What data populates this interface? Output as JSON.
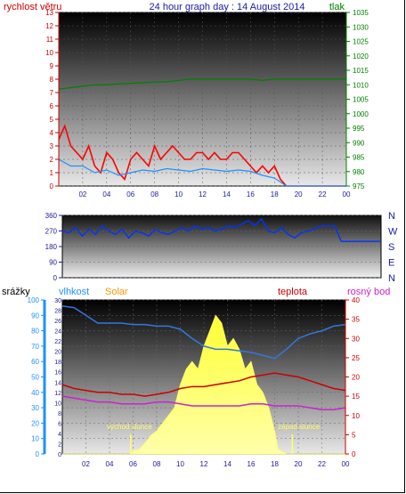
{
  "header": {
    "left_label": "rychlost větru",
    "title": "24 hour graph day : 14 August 2014",
    "right_label": "tlak"
  },
  "wind_panel": {
    "left_ticks": [
      0,
      1,
      2,
      3,
      4,
      5,
      6,
      7,
      8,
      9,
      10,
      11,
      12,
      13
    ],
    "right_ticks": [
      975,
      980,
      985,
      990,
      995,
      1000,
      1005,
      1010,
      1015,
      1020,
      1025,
      1030,
      1035
    ],
    "x_ticks": [
      "02",
      "04",
      "06",
      "08",
      "10",
      "12",
      "14",
      "16",
      "18",
      "20",
      "22",
      "00"
    ]
  },
  "direction_panel": {
    "left_ticks": [
      0,
      90,
      180,
      270,
      360
    ],
    "compass": [
      "N",
      "W",
      "S",
      "E",
      "N"
    ],
    "x_ticks": []
  },
  "weather_panel": {
    "labels": {
      "rain": "srážky",
      "humidity": "vlhkost",
      "solar": "Solar",
      "temperature": "teplota",
      "dewpoint": "rosný bod"
    },
    "left_ticks": [
      0,
      10,
      20,
      30,
      40,
      50,
      60,
      70,
      80,
      90,
      100
    ],
    "left2_ticks": [
      0,
      2,
      4,
      6,
      8,
      10,
      12,
      14,
      16,
      18,
      20,
      22,
      24,
      26,
      28,
      30
    ],
    "right_ticks": [
      0,
      5,
      10,
      15,
      20,
      25,
      30,
      35,
      40
    ],
    "x_ticks": [
      "02",
      "04",
      "06",
      "08",
      "10",
      "12",
      "14",
      "16",
      "18",
      "20",
      "22",
      "00"
    ],
    "annotations": {
      "sunrise": "východ slunce",
      "sunset": "západ slunce"
    }
  },
  "colors": {
    "wind_gust": "#ff0000",
    "wind_avg": "#1e90ff",
    "pressure": "#008000",
    "direction": "#0033ff",
    "humidity": "#3377dd",
    "temperature": "#cc0000",
    "dewpoint": "#cc22cc",
    "solar": "#ffff33",
    "rain_axis": "#1e90ff"
  },
  "chart_data": [
    {
      "type": "line",
      "x_unit": "hour",
      "series": [
        {
          "name": "rychlost větru",
          "axis": "left",
          "x": [
            0,
            0.5,
            1,
            1.5,
            2,
            2.5,
            3,
            3.5,
            4,
            4.5,
            5,
            5.5,
            6,
            6.5,
            7,
            7.5,
            8,
            8.5,
            9,
            9.5,
            10,
            10.5,
            11,
            11.5,
            12,
            12.5,
            13,
            13.5,
            14,
            14.5,
            15,
            15.5,
            16,
            16.5,
            17,
            17.5,
            18,
            18.5,
            19,
            20,
            21,
            22,
            23,
            24
          ],
          "values": [
            3.5,
            4.5,
            3,
            2.5,
            2,
            3,
            1.5,
            1,
            2.5,
            2,
            1,
            0.5,
            2,
            2.5,
            2,
            1.5,
            3,
            2,
            2.5,
            3,
            2.5,
            2,
            2,
            2.5,
            2.5,
            2,
            2.5,
            2,
            2,
            2.5,
            2.5,
            2,
            1.5,
            1,
            1.5,
            1,
            1.5,
            0.5,
            0,
            0,
            0,
            0,
            0,
            0
          ]
        },
        {
          "name": "avg",
          "axis": "left",
          "x": [
            0,
            1,
            2,
            3,
            4,
            5,
            6,
            7,
            8,
            9,
            10,
            11,
            12,
            13,
            14,
            15,
            16,
            17,
            18,
            19,
            20,
            22,
            24
          ],
          "values": [
            2,
            1.5,
            1.5,
            1,
            1.2,
            0.8,
            1,
            1.2,
            1.1,
            1.3,
            1.2,
            1.1,
            1.3,
            1.2,
            1.1,
            1.2,
            1.1,
            0.8,
            0.6,
            0,
            0,
            0,
            0
          ]
        },
        {
          "name": "tlak",
          "axis": "right",
          "x": [
            0,
            1,
            2,
            3,
            4,
            5,
            6,
            7,
            8,
            9,
            10,
            11,
            12,
            13,
            14,
            15,
            16,
            17,
            18,
            19,
            20,
            21,
            22,
            23,
            24
          ],
          "values": [
            1008.5,
            1009,
            1009.5,
            1010,
            1010,
            1010.3,
            1010.5,
            1010.7,
            1011,
            1011,
            1011.5,
            1012,
            1012,
            1012,
            1012,
            1012,
            1012,
            1011.5,
            1012,
            1012,
            1012,
            1012,
            1012,
            1012,
            1012
          ]
        }
      ],
      "xlim": [
        0,
        24
      ],
      "ylim_left": [
        0,
        13
      ],
      "ylim_right": [
        975,
        1035
      ]
    },
    {
      "type": "line",
      "x_unit": "hour",
      "series": [
        {
          "name": "direction",
          "x": [
            0,
            0.5,
            1,
            1.5,
            2,
            2.5,
            3,
            3.5,
            4,
            4.5,
            5,
            5.5,
            6,
            6.5,
            7,
            7.5,
            8,
            8.5,
            9,
            9.5,
            10,
            10.5,
            11,
            11.5,
            12,
            12.5,
            13,
            13.5,
            14,
            14.5,
            15,
            15.5,
            16,
            16.5,
            17,
            17.5,
            18,
            18.5,
            19,
            19.5,
            20,
            20.5,
            21,
            22,
            23,
            24
          ],
          "values": [
            270,
            260,
            290,
            240,
            280,
            250,
            300,
            270,
            250,
            280,
            230,
            270,
            260,
            240,
            280,
            260,
            250,
            270,
            290,
            270,
            300,
            280,
            290,
            270,
            280,
            300,
            290,
            310,
            330,
            300,
            340,
            270,
            260,
            290,
            250,
            230,
            260,
            270,
            280,
            300,
            300,
            300,
            210,
            210,
            210,
            210
          ]
        }
      ],
      "xlim": [
        0,
        24
      ],
      "ylim": [
        0,
        360
      ]
    },
    {
      "type": "area",
      "x_unit": "hour",
      "series": [
        {
          "name": "vlhkost",
          "axis": "left",
          "x": [
            0,
            1,
            2,
            3,
            4,
            5,
            6,
            7,
            8,
            9,
            10,
            11,
            12,
            13,
            14,
            15,
            16,
            17,
            18,
            19,
            20,
            21,
            22,
            23,
            24
          ],
          "values": [
            96,
            95,
            90,
            85,
            85,
            85,
            84,
            84,
            83,
            83,
            81,
            75,
            70,
            68,
            68,
            67,
            66,
            64,
            62,
            68,
            75,
            78,
            80,
            83,
            84
          ]
        },
        {
          "name": "Solar",
          "axis": "left",
          "x": [
            0,
            5.8,
            6,
            6.5,
            7,
            7.5,
            8,
            8.5,
            9,
            9.5,
            10,
            10.5,
            11,
            11.5,
            12,
            12.5,
            13,
            13.5,
            14,
            14.5,
            15,
            15.5,
            16,
            16.5,
            17,
            17.5,
            18,
            18.3,
            19,
            24
          ],
          "values": [
            0,
            0,
            2,
            3,
            7,
            12,
            15,
            20,
            25,
            30,
            45,
            55,
            60,
            55,
            70,
            80,
            90,
            85,
            70,
            75,
            68,
            55,
            60,
            45,
            40,
            30,
            15,
            3,
            0,
            0
          ]
        },
        {
          "name": "teplota",
          "axis": "right",
          "x": [
            0,
            1,
            2,
            3,
            4,
            5,
            6,
            7,
            8,
            9,
            10,
            11,
            12,
            13,
            14,
            15,
            16,
            17,
            18,
            19,
            20,
            21,
            22,
            23,
            24
          ],
          "values": [
            18,
            17,
            16.5,
            16,
            16,
            15.5,
            15.5,
            15,
            15.5,
            16,
            17,
            17.5,
            17.5,
            18,
            18.5,
            19,
            20,
            20.5,
            21,
            20.5,
            20,
            19,
            18,
            17,
            16.5
          ]
        },
        {
          "name": "rosný bod",
          "axis": "right",
          "x": [
            0,
            1,
            2,
            3,
            4,
            5,
            6,
            7,
            8,
            9,
            10,
            11,
            12,
            13,
            14,
            15,
            16,
            17,
            18,
            19,
            20,
            21,
            22,
            23,
            24
          ],
          "values": [
            15,
            14.5,
            14,
            13.5,
            13.5,
            13,
            13,
            13,
            13.5,
            13.5,
            13,
            12.5,
            12.5,
            12.5,
            12.5,
            12.5,
            13,
            13,
            12.5,
            12.5,
            12.5,
            12,
            11.5,
            11.5,
            12
          ]
        }
      ],
      "xlim": [
        0,
        24
      ],
      "ylim_left": [
        0,
        100
      ],
      "ylim_right": [
        0,
        40
      ]
    }
  ]
}
